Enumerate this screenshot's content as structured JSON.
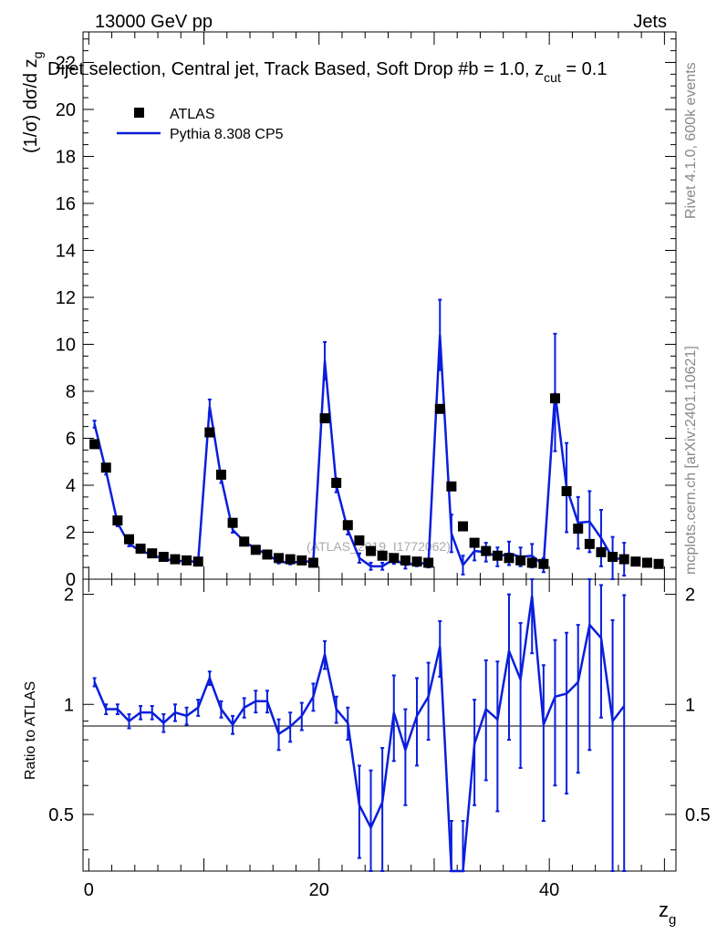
{
  "header": {
    "left": "13000 GeV pp",
    "right": "Jets",
    "title": "Dijet selection, Central jet, Track Based, Soft Drop #b = 1.0, z",
    "title_sub": "cut",
    "title_end": " = 0.1",
    "side_top": "Rivet 4.1.0,  600k events",
    "side_bottom": "mcplots.cern.ch [arXiv:2401.10621]",
    "watermark": "(ATLAS_2019_I1772062)"
  },
  "legend": {
    "data_label": "ATLAS",
    "mc_label": "Pythia 8.308 CP5"
  },
  "colors": {
    "data": "#000000",
    "mc": "#0a1edc"
  },
  "chart_data": {
    "type": "scatter",
    "xlabel": "z",
    "xlabel_sub": "g",
    "ylabel_main": "(1/σ) dσ/d z",
    "ylabel_main_sub": "g",
    "ylabel_ratio": "Ratio to ATLAS",
    "xlim": [
      -0.5,
      51
    ],
    "ylim_main": [
      0,
      23.3
    ],
    "ylim_ratio": [
      0.35,
      2.2
    ],
    "x_ticks": [
      "0",
      "20",
      "40"
    ],
    "y_ticks_main": [
      "0",
      "2",
      "4",
      "6",
      "8",
      "10",
      "12",
      "14",
      "16",
      "18",
      "20",
      "22"
    ],
    "y_ticks_ratio": [
      "0.5",
      "1",
      "2"
    ],
    "x": [
      0.5,
      1.5,
      2.5,
      3.5,
      4.5,
      5.5,
      6.5,
      7.5,
      8.5,
      9.5,
      10.5,
      11.5,
      12.5,
      13.5,
      14.5,
      15.5,
      16.5,
      17.5,
      18.5,
      19.5,
      20.5,
      21.5,
      22.5,
      23.5,
      24.5,
      25.5,
      26.5,
      27.5,
      28.5,
      29.5,
      30.5,
      31.5,
      32.5,
      33.5,
      34.5,
      35.5,
      36.5,
      37.5,
      38.5,
      39.5,
      40.5,
      41.5,
      42.5,
      43.5,
      44.5,
      45.5,
      46.5,
      47.5,
      48.5,
      49.5
    ],
    "data": [
      5.75,
      4.75,
      2.5,
      1.7,
      1.3,
      1.1,
      0.95,
      0.85,
      0.8,
      0.75,
      6.25,
      4.45,
      2.4,
      1.6,
      1.25,
      1.05,
      0.9,
      0.85,
      0.8,
      0.7,
      6.85,
      4.1,
      2.3,
      1.65,
      1.2,
      1.0,
      0.9,
      0.8,
      0.75,
      0.7,
      7.25,
      3.95,
      2.25,
      1.55,
      1.2,
      1.0,
      0.9,
      0.8,
      0.7,
      0.65,
      7.7,
      3.75,
      2.15,
      1.5,
      1.15,
      0.95,
      0.85,
      0.75,
      0.7,
      0.65
    ],
    "mc": [
      6.6,
      4.6,
      2.4,
      1.5,
      1.2,
      1.05,
      0.85,
      0.8,
      0.75,
      0.75,
      7.35,
      4.3,
      2.1,
      1.6,
      1.3,
      1.05,
      0.75,
      0.7,
      0.75,
      0.75,
      9.3,
      4.0,
      2.1,
      0.9,
      0.55,
      0.55,
      0.85,
      0.6,
      0.7,
      0.65,
      10.4,
      1.95,
      0.6,
      1.2,
      1.15,
      0.95,
      1.1,
      0.95,
      1.0,
      0.6,
      7.95,
      3.9,
      2.4,
      2.45,
      1.75,
      0.9,
      0.85
    ],
    "mc_err": [
      0.15,
      0.15,
      0.15,
      0.1,
      0.08,
      0.06,
      0.05,
      0.05,
      0.05,
      0.05,
      0.3,
      0.2,
      0.12,
      0.1,
      0.1,
      0.08,
      0.08,
      0.07,
      0.07,
      0.07,
      0.8,
      0.3,
      0.2,
      0.2,
      0.15,
      0.15,
      0.2,
      0.15,
      0.15,
      0.15,
      1.5,
      0.8,
      0.4,
      0.4,
      0.4,
      0.4,
      0.5,
      0.4,
      0.5,
      0.3,
      2.5,
      1.9,
      1.1,
      1.3,
      1.2,
      0.9,
      0.7
    ],
    "ratio": [
      1.15,
      0.97,
      0.97,
      0.9,
      0.95,
      0.95,
      0.89,
      0.95,
      0.93,
      0.98,
      1.18,
      0.97,
      0.88,
      0.98,
      1.02,
      1.02,
      0.83,
      0.87,
      0.93,
      1.05,
      1.37,
      0.97,
      0.89,
      0.53,
      0.46,
      0.54,
      0.95,
      0.75,
      0.93,
      1.05,
      1.44,
      0.28,
      0.28,
      0.78,
      0.97,
      0.91,
      1.4,
      1.17,
      1.98,
      0.88,
      1.05,
      1.07,
      1.15,
      1.65,
      1.52,
      0.9,
      0.99
    ],
    "ratio_err": [
      0.03,
      0.03,
      0.03,
      0.04,
      0.04,
      0.04,
      0.05,
      0.05,
      0.05,
      0.05,
      0.05,
      0.05,
      0.05,
      0.06,
      0.07,
      0.07,
      0.08,
      0.08,
      0.08,
      0.09,
      0.12,
      0.08,
      0.09,
      0.15,
      0.2,
      0.22,
      0.25,
      0.22,
      0.25,
      0.25,
      0.25,
      0.2,
      0.2,
      0.25,
      0.35,
      0.4,
      0.6,
      0.5,
      0.6,
      0.4,
      0.45,
      0.5,
      0.5,
      0.9,
      0.6,
      0.8,
      1.0
    ]
  }
}
